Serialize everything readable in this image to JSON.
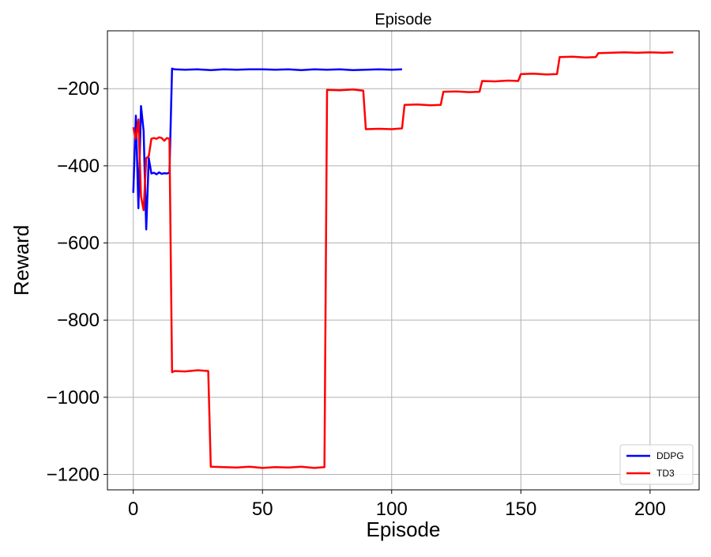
{
  "chart_data": {
    "type": "line",
    "title": "Episode",
    "xlabel": "Episode",
    "ylabel": "Reward",
    "xlim": [
      -10,
      219
    ],
    "ylim": [
      -1240,
      -50
    ],
    "xticks": [
      0,
      50,
      100,
      150,
      200
    ],
    "yticks": [
      -200,
      -400,
      -600,
      -800,
      -1000,
      -1200
    ],
    "xtick_labels": [
      "0",
      "50",
      "100",
      "150",
      "200"
    ],
    "ytick_labels": [
      "−200",
      "−400",
      "−600",
      "−800",
      "−1000",
      "−1200"
    ],
    "grid": true,
    "legend_position": "lower-right",
    "series": [
      {
        "name": "DDPG",
        "color": "#0000ff",
        "x": [
          0,
          1,
          2,
          3,
          4,
          5,
          6,
          7,
          8,
          9,
          10,
          11,
          12,
          13,
          14,
          15,
          16,
          20,
          25,
          30,
          35,
          40,
          45,
          50,
          55,
          60,
          65,
          70,
          75,
          80,
          85,
          90,
          95,
          100,
          104
        ],
        "y": [
          -470,
          -270,
          -510,
          -245,
          -310,
          -565,
          -380,
          -420,
          -418,
          -422,
          -417,
          -421,
          -419,
          -420,
          -418,
          -148,
          -150,
          -151,
          -150,
          -152,
          -150,
          -151,
          -150,
          -150,
          -151,
          -150,
          -152,
          -150,
          -151,
          -150,
          -152,
          -151,
          -150,
          -151,
          -150
        ]
      },
      {
        "name": "TD3",
        "color": "#ff0000",
        "x": [
          0,
          1,
          2,
          3,
          4,
          5,
          6,
          7,
          8,
          9,
          10,
          11,
          12,
          13,
          14,
          15,
          16,
          20,
          25,
          29,
          30,
          35,
          40,
          45,
          50,
          55,
          60,
          65,
          70,
          74,
          75,
          80,
          85,
          89,
          90,
          95,
          100,
          104,
          105,
          110,
          115,
          119,
          120,
          125,
          130,
          134,
          135,
          140,
          145,
          149,
          150,
          155,
          160,
          164,
          165,
          170,
          175,
          179,
          180,
          185,
          190,
          195,
          200,
          205,
          209
        ],
        "y": [
          -300,
          -330,
          -280,
          -480,
          -515,
          -380,
          -375,
          -330,
          -328,
          -330,
          -326,
          -328,
          -335,
          -328,
          -330,
          -935,
          -932,
          -933,
          -930,
          -932,
          -1180,
          -1181,
          -1182,
          -1180,
          -1183,
          -1181,
          -1182,
          -1180,
          -1183,
          -1181,
          -203,
          -204,
          -202,
          -205,
          -305,
          -304,
          -305,
          -303,
          -242,
          -241,
          -243,
          -242,
          -208,
          -207,
          -209,
          -208,
          -180,
          -181,
          -179,
          -180,
          -162,
          -161,
          -163,
          -162,
          -118,
          -117,
          -119,
          -118,
          -108,
          -107,
          -106,
          -107,
          -106,
          -107,
          -106
        ]
      }
    ]
  }
}
